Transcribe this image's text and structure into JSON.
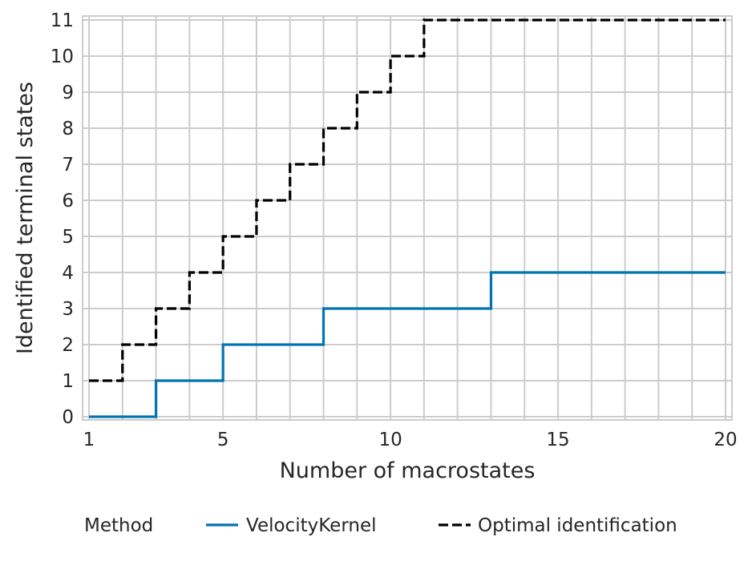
{
  "chart_data": {
    "type": "line",
    "step": "post",
    "title": "",
    "xlabel": "Number of macrostates",
    "ylabel": "Identified terminal states",
    "xlim": [
      1,
      20
    ],
    "ylim": [
      0,
      11
    ],
    "xticks": [
      1,
      5,
      10,
      15,
      20
    ],
    "yticks": [
      0,
      1,
      2,
      3,
      4,
      5,
      6,
      7,
      8,
      9,
      10,
      11
    ],
    "grid": true,
    "legend": {
      "placement": "bottom",
      "title": "Method"
    },
    "series": [
      {
        "name": "VelocityKernel",
        "color": "#0173b2",
        "dash": "solid",
        "x": [
          1,
          2,
          3,
          4,
          5,
          6,
          7,
          8,
          9,
          10,
          11,
          12,
          13,
          14,
          15,
          16,
          17,
          18,
          19,
          20
        ],
        "values": [
          0,
          0,
          1,
          1,
          2,
          2,
          2,
          3,
          3,
          3,
          3,
          3,
          4,
          4,
          4,
          4,
          4,
          4,
          4,
          4
        ]
      },
      {
        "name": "Optimal identification",
        "color": "#000000",
        "dash": "dashed",
        "x": [
          1,
          2,
          3,
          4,
          5,
          6,
          7,
          8,
          9,
          10,
          11,
          12,
          13,
          14,
          15,
          16,
          17,
          18,
          19,
          20
        ],
        "values": [
          1,
          2,
          3,
          4,
          5,
          6,
          7,
          8,
          9,
          10,
          11,
          11,
          11,
          11,
          11,
          11,
          11,
          11,
          11,
          11
        ]
      }
    ]
  }
}
